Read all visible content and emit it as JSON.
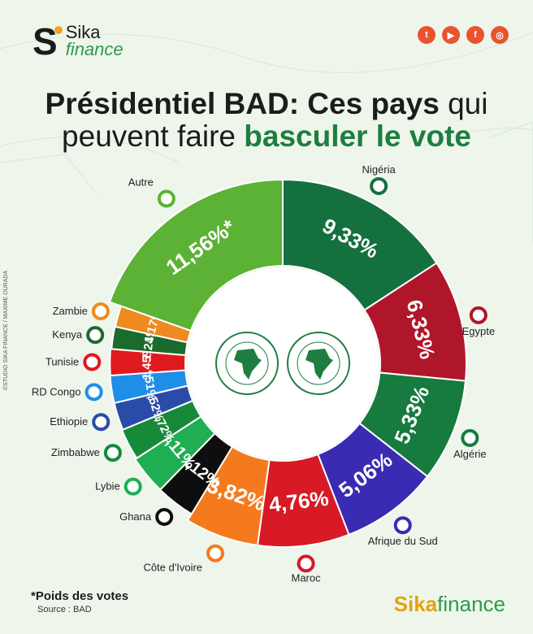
{
  "header": {
    "logo_top": "Sika",
    "logo_bottom": "finance",
    "social_icons": [
      "twitter-icon",
      "youtube-icon",
      "facebook-icon",
      "instagram-icon"
    ]
  },
  "title": {
    "line1_bold": "Présidentiel BAD: Ces pays",
    "line1_rest": " qui",
    "line2_rest": "peuvent faire ",
    "line2_bold": "basculer le vote"
  },
  "chart_data": {
    "type": "pie",
    "donut": true,
    "slices": [
      {
        "label": "Nigéria",
        "value_label": "9,33%",
        "value": 9.33,
        "color": "#15703f"
      },
      {
        "label": "Egypte",
        "value_label": "6,33%",
        "value": 6.33,
        "color": "#b0162a"
      },
      {
        "label": "Algérie",
        "value_label": "5,33%",
        "value": 5.33,
        "color": "#177a3e"
      },
      {
        "label": "Afrique du Sud",
        "value_label": "5,06%",
        "value": 5.06,
        "color": "#3a2bb3"
      },
      {
        "label": "Maroc",
        "value_label": "4,76%",
        "value": 4.76,
        "color": "#d71a25"
      },
      {
        "label": "Côte d'Ivoire",
        "value_label": "3,82%",
        "value": 3.82,
        "color": "#f47a1d"
      },
      {
        "label": "Ghana",
        "value_label": "2,12%",
        "value": 2.12,
        "color": "#0e0e0e"
      },
      {
        "label": "Lybie",
        "value_label": "2,11%",
        "value": 2.11,
        "color": "#1fae52"
      },
      {
        "label": "Zimbabwe",
        "value_label": "1,72%",
        "value": 1.72,
        "color": "#178a3a"
      },
      {
        "label": "Ethiopie",
        "value_label": "1,52%",
        "value": 1.52,
        "color": "#2a4ca8"
      },
      {
        "label": "RD Congo",
        "value_label": "1,51%",
        "value": 1.51,
        "color": "#1f8ee8"
      },
      {
        "label": "Tunisie",
        "value_label": "1,45%",
        "value": 1.45,
        "color": "#e0191f"
      },
      {
        "label": "Kenya",
        "value_label": "1,24%",
        "value": 1.24,
        "color": "#1a6b2d"
      },
      {
        "label": "Zambie",
        "value_label": "1,17%",
        "value": 1.17,
        "color": "#ef8a20"
      },
      {
        "label": "Autre",
        "value_label": "11,56%*",
        "value": 11.56,
        "color": "#5cb234"
      }
    ]
  },
  "center": {
    "badge1_text": "BANQUE AFRICAINE DE DEVELOPPEMENT · AFRICAN DEVELOPMENT BANK",
    "badge2_text": "AFRICAN DEVELOPMENT FUND · FONDS AFRICAIN DE DEVELOPPEMENT"
  },
  "footer": {
    "footnote": "*Poids des votes",
    "source": "Source : BAD",
    "logo_sika": "Sika",
    "logo_finance": "finance",
    "credit": "©STUDIO SIKA FINANCE / MAXIME OURADA"
  }
}
